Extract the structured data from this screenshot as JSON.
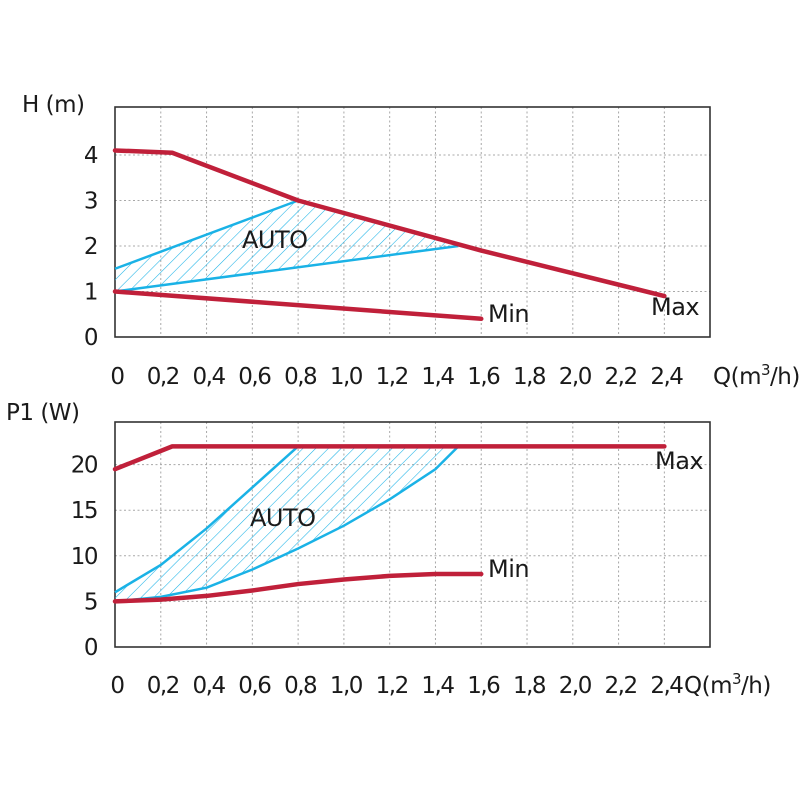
{
  "colors": {
    "max_min_curve": "#c0203a",
    "auto_band": "#1ab2e6",
    "grid": "#a8a8a8",
    "frame": "#333333",
    "text": "#1a1a1a"
  },
  "chart_data": [
    {
      "type": "line",
      "chart": "head",
      "ylabel": "H (m)",
      "xlabel": "Q(m³/h)",
      "xlabel_parts": {
        "base": "Q(m",
        "sup": "3",
        "tail": "/h)"
      },
      "xlim": [
        0,
        2.6
      ],
      "ylim": [
        0,
        5
      ],
      "x_ticks": [
        0,
        0.2,
        0.4,
        0.6,
        0.8,
        1.0,
        1.2,
        1.4,
        1.6,
        1.8,
        2.0,
        2.2,
        2.4
      ],
      "x_tick_labels": [
        "0",
        "0,2",
        "0,4",
        "0,6",
        "0,8",
        "1,0",
        "1,2",
        "1,4",
        "1,6",
        "1,8",
        "2,0",
        "2,2",
        "2,4"
      ],
      "y_ticks": [
        0,
        1,
        2,
        3,
        4
      ],
      "y_tick_labels": [
        "0",
        "1",
        "2",
        "3",
        "4"
      ],
      "grid": true,
      "series": [
        {
          "name": "Max",
          "x": [
            0,
            0.25,
            0.8,
            1.6,
            2.4
          ],
          "y": [
            4.1,
            4.05,
            3.0,
            1.9,
            0.9
          ]
        },
        {
          "name": "Min",
          "x": [
            0,
            1.6
          ],
          "y": [
            1.0,
            0.4
          ]
        }
      ],
      "auto_region": {
        "label": "AUTO",
        "upper": {
          "x": [
            0,
            0.8
          ],
          "y": [
            1.5,
            3.0
          ]
        },
        "lower": {
          "x": [
            0,
            1.5
          ],
          "y": [
            1.0,
            2.0
          ]
        }
      },
      "annotations": {
        "max": "Max",
        "min": "Min",
        "auto": "AUTO"
      }
    },
    {
      "type": "line",
      "chart": "power",
      "ylabel": "P1 (W)",
      "xlabel": "Q(m³/h)",
      "xlabel_parts": {
        "base": "Q(m",
        "sup": "3",
        "tail": "/h)"
      },
      "xlim": [
        0,
        2.6
      ],
      "ylim": [
        0,
        25
      ],
      "x_ticks": [
        0,
        0.2,
        0.4,
        0.6,
        0.8,
        1.0,
        1.2,
        1.4,
        1.6,
        1.8,
        2.0,
        2.2,
        2.4
      ],
      "x_tick_labels": [
        "0",
        "0,2",
        "0,4",
        "0,6",
        "0,8",
        "1,0",
        "1,2",
        "1,4",
        "1,6",
        "1,8",
        "2,0",
        "2,2",
        "2,4"
      ],
      "y_ticks": [
        0,
        5,
        10,
        15,
        20
      ],
      "y_tick_labels": [
        "0",
        "5",
        "10",
        "15",
        "20"
      ],
      "grid": true,
      "series": [
        {
          "name": "Max",
          "x": [
            0,
            0.25,
            2.4
          ],
          "y": [
            19.5,
            22,
            22
          ]
        },
        {
          "name": "Min",
          "x": [
            0,
            0.2,
            0.4,
            0.6,
            0.8,
            1.0,
            1.2,
            1.4,
            1.6
          ],
          "y": [
            5.0,
            5.2,
            5.6,
            6.2,
            6.9,
            7.4,
            7.8,
            8.0,
            8.0
          ]
        }
      ],
      "auto_region": {
        "label": "AUTO",
        "upper": {
          "x": [
            0,
            0.2,
            0.4,
            0.6,
            0.8
          ],
          "y": [
            6.0,
            9.0,
            13.0,
            17.5,
            22.0
          ]
        },
        "lower": {
          "x": [
            0,
            0.2,
            0.4,
            0.6,
            0.8,
            1.0,
            1.2,
            1.4,
            1.5
          ],
          "y": [
            5.0,
            5.5,
            6.5,
            8.5,
            10.8,
            13.3,
            16.2,
            19.5,
            22.0
          ]
        }
      },
      "annotations": {
        "max": "Max",
        "min": "Min",
        "auto": "AUTO"
      }
    }
  ]
}
